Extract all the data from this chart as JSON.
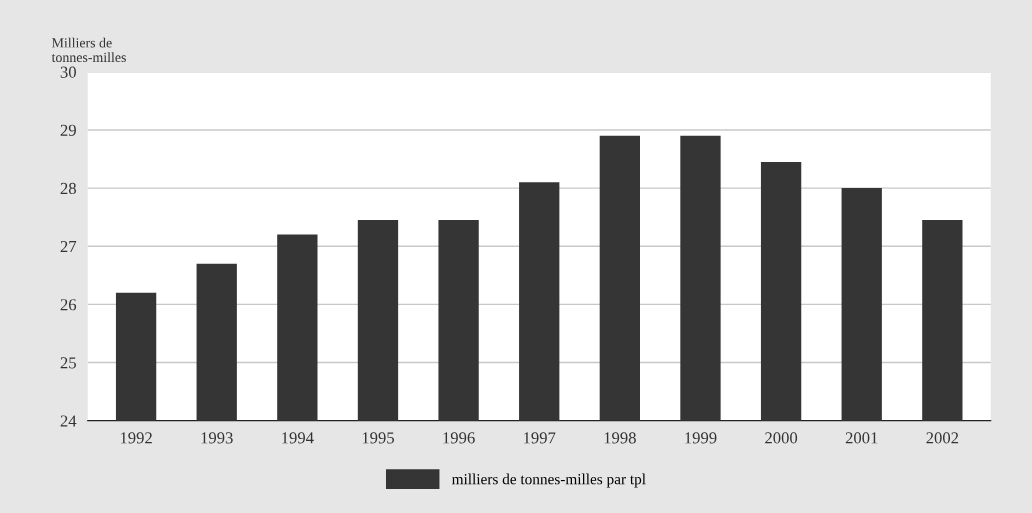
{
  "chart_data": {
    "type": "bar",
    "ylabel": "Milliers de\ntonnes-milles",
    "categories": [
      "1992",
      "1993",
      "1994",
      "1995",
      "1996",
      "1997",
      "1998",
      "1999",
      "2000",
      "2001",
      "2002"
    ],
    "series": [
      {
        "name": "milliers de tonnes-milles par tpl",
        "color": "#353535",
        "values": [
          26.2,
          26.7,
          27.2,
          27.45,
          27.45,
          28.1,
          28.9,
          28.9,
          28.45,
          28.0,
          27.45
        ]
      }
    ],
    "ylim": [
      24,
      30
    ],
    "yticks": [
      24,
      25,
      26,
      27,
      28,
      29,
      30
    ],
    "grid": "y",
    "legend": "bottom"
  }
}
